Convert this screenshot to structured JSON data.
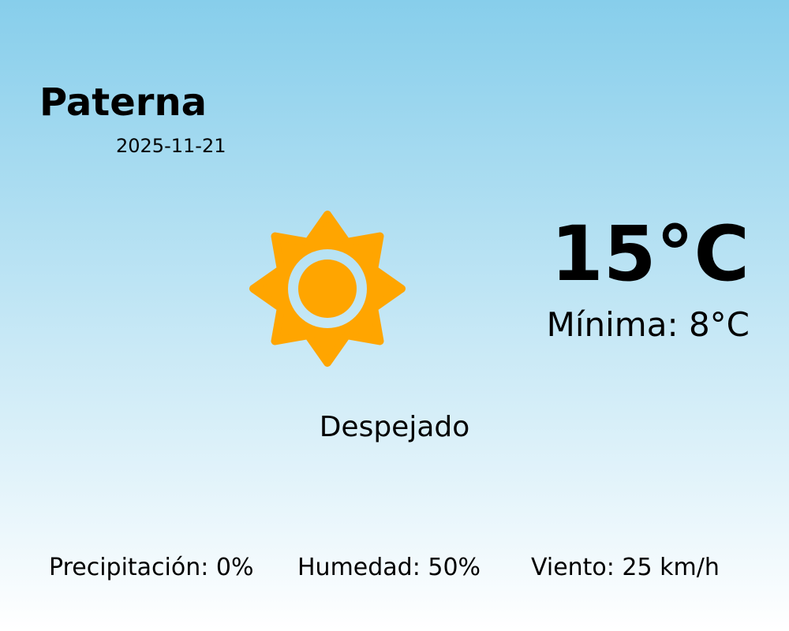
{
  "location": {
    "city": "Paterna",
    "date": "2025-11-21"
  },
  "current": {
    "temperature": "15°C",
    "minimum": "Mínima: 8°C",
    "condition": "Despejado",
    "icon": "sun-icon",
    "icon_color": "#FFA500"
  },
  "details": {
    "precipitation": "Precipitación: 0%",
    "humidity": "Humedad: 50%",
    "wind": "Viento: 25 km/h"
  },
  "colors": {
    "sky_top": "#87CEEB",
    "sky_bottom": "#FFFFFF"
  }
}
